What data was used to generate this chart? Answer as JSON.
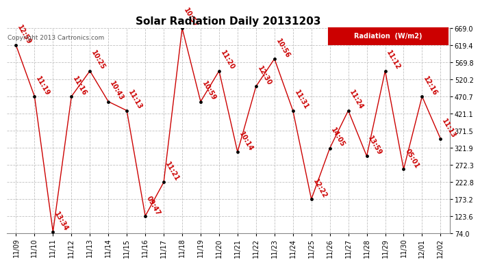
{
  "title": "Solar Radiation Daily 20131203",
  "copyright": "Copyright 2013 Cartronics.com",
  "legend_label": "Radiation  (W/m2)",
  "legend_bg": "#cc0000",
  "legend_fg": "#ffffff",
  "ylim": [
    74.0,
    669.0
  ],
  "yticks": [
    74.0,
    123.6,
    173.2,
    222.8,
    272.3,
    321.9,
    371.5,
    421.1,
    470.7,
    520.2,
    569.8,
    619.4,
    669.0
  ],
  "background_color": "#ffffff",
  "grid_color": "#c0c0c0",
  "line_color": "#cc0000",
  "marker_color": "#000000",
  "dates": [
    "11/09",
    "11/10",
    "11/11",
    "11/12",
    "11/13",
    "11/14",
    "11/15",
    "11/16",
    "11/17",
    "11/18",
    "11/19",
    "11/20",
    "11/21",
    "11/22",
    "11/23",
    "11/24",
    "11/25",
    "11/26",
    "11/27",
    "11/28",
    "11/29",
    "11/30",
    "12/01",
    "12/02"
  ],
  "values": [
    619,
    471,
    78,
    471,
    545,
    456,
    430,
    124,
    222,
    669,
    456,
    545,
    310,
    500,
    580,
    430,
    173,
    321,
    430,
    298,
    545,
    260,
    471,
    348
  ],
  "labels": [
    "12:59",
    "11:19",
    "13:34",
    "11:16",
    "10:25",
    "10:43",
    "11:13",
    "09:47",
    "11:21",
    "10:57",
    "10:59",
    "11:20",
    "10:14",
    "12:30",
    "10:56",
    "11:31",
    "12:22",
    "14:05",
    "11:24",
    "13:59",
    "11:12",
    "05:01",
    "12:16",
    "11:13"
  ],
  "title_fontsize": 11,
  "axis_fontsize": 7,
  "label_fontsize": 7,
  "fig_width": 6.9,
  "fig_height": 3.75,
  "dpi": 100
}
